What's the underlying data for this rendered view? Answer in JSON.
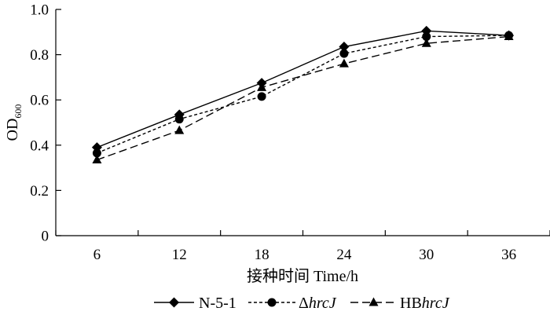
{
  "chart_data": {
    "type": "line",
    "title": "",
    "xlabel": "接种时间 Time/h",
    "ylabel": {
      "main": "OD",
      "subscript": "600"
    },
    "x": [
      6,
      12,
      18,
      24,
      30,
      36
    ],
    "xlim": [
      3,
      39
    ],
    "ylim": [
      0,
      1.0
    ],
    "xticks": [
      "6",
      "12",
      "18",
      "24",
      "30",
      "36"
    ],
    "yticks": [
      "0",
      "0.2",
      "0.4",
      "0.6",
      "0.8",
      "1.0"
    ],
    "grid": false,
    "legend_position": "bottom",
    "series": [
      {
        "name": "N-5-1",
        "legend_prefix": "",
        "legend_italic": "",
        "marker": "diamond",
        "line_style": "solid",
        "values": [
          0.39,
          0.535,
          0.675,
          0.835,
          0.905,
          0.885
        ]
      },
      {
        "name": "ΔhrcJ",
        "legend_prefix": "Δ",
        "legend_italic": "hrcJ",
        "marker": "circle",
        "line_style": "short-dash",
        "values": [
          0.365,
          0.515,
          0.615,
          0.805,
          0.88,
          0.885
        ]
      },
      {
        "name": "HBhrcJ",
        "legend_prefix": "HB",
        "legend_italic": "hrcJ",
        "marker": "triangle",
        "line_style": "long-dash",
        "values": [
          0.335,
          0.465,
          0.655,
          0.76,
          0.85,
          0.88
        ]
      }
    ]
  }
}
